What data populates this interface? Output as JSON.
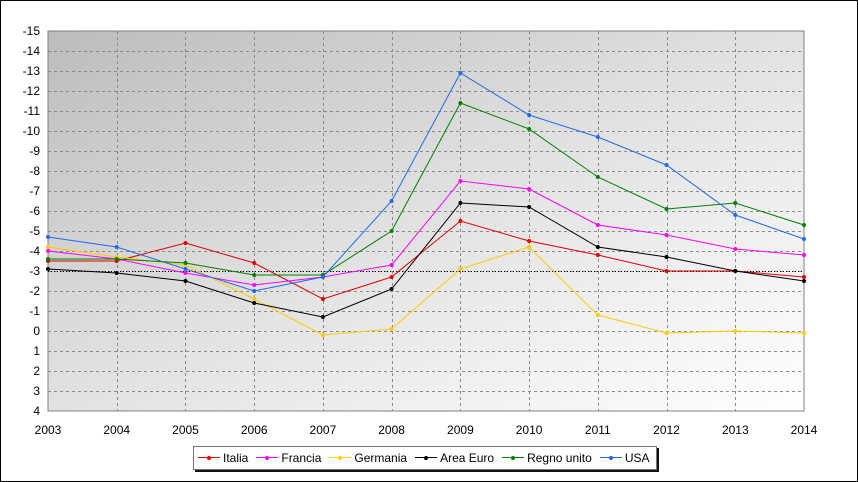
{
  "chart_data": {
    "type": "line",
    "title": "",
    "xlabel": "",
    "ylabel": "",
    "x": [
      "2003",
      "2004",
      "2005",
      "2006",
      "2007",
      "2008",
      "2009",
      "2010",
      "2011",
      "2012",
      "2013",
      "2014"
    ],
    "ylim": [
      4,
      -15
    ],
    "y_inverted": true,
    "y_ticks": [
      "-15",
      "-14",
      "-13",
      "-12",
      "-11",
      "-10",
      "-9",
      "-8",
      "-7",
      "-6",
      "-5",
      "-4",
      "-3",
      "-2",
      "-1",
      "0",
      "1",
      "2",
      "3",
      "4"
    ],
    "reference_line": {
      "value": -3,
      "style": "dotted"
    },
    "grid": true,
    "legend": "bottom",
    "series": [
      {
        "name": "Italia",
        "color": "#e00000",
        "values": [
          -3.5,
          -3.5,
          -4.4,
          -3.4,
          -1.6,
          -2.7,
          -5.5,
          -4.5,
          -3.8,
          -3.0,
          -3.0,
          -2.7
        ]
      },
      {
        "name": "Francia",
        "color": "#ff00ff",
        "values": [
          -4.0,
          -3.6,
          -2.9,
          -2.3,
          -2.7,
          -3.3,
          -7.5,
          -7.1,
          -5.3,
          -4.8,
          -4.1,
          -3.8
        ]
      },
      {
        "name": "Germania",
        "color": "#ffcc00",
        "values": [
          -4.2,
          -3.7,
          -3.3,
          -1.6,
          0.2,
          -0.1,
          -3.1,
          -4.2,
          -0.8,
          0.1,
          0.0,
          0.1
        ]
      },
      {
        "name": "Area Euro",
        "color": "#000000",
        "values": [
          -3.1,
          -2.9,
          -2.5,
          -1.4,
          -0.7,
          -2.1,
          -6.4,
          -6.2,
          -4.2,
          -3.7,
          -3.0,
          -2.5
        ]
      },
      {
        "name": "Regno unito",
        "color": "#008000",
        "values": [
          -3.6,
          -3.6,
          -3.4,
          -2.8,
          -2.8,
          -5.0,
          -11.4,
          -10.1,
          -7.7,
          -6.1,
          -6.4,
          -5.3
        ]
      },
      {
        "name": "USA",
        "color": "#1e6bea",
        "values": [
          -4.7,
          -4.2,
          -3.1,
          -2.0,
          -2.7,
          -6.5,
          -12.9,
          -10.8,
          -9.7,
          -8.3,
          -5.8,
          -4.6
        ]
      }
    ]
  }
}
